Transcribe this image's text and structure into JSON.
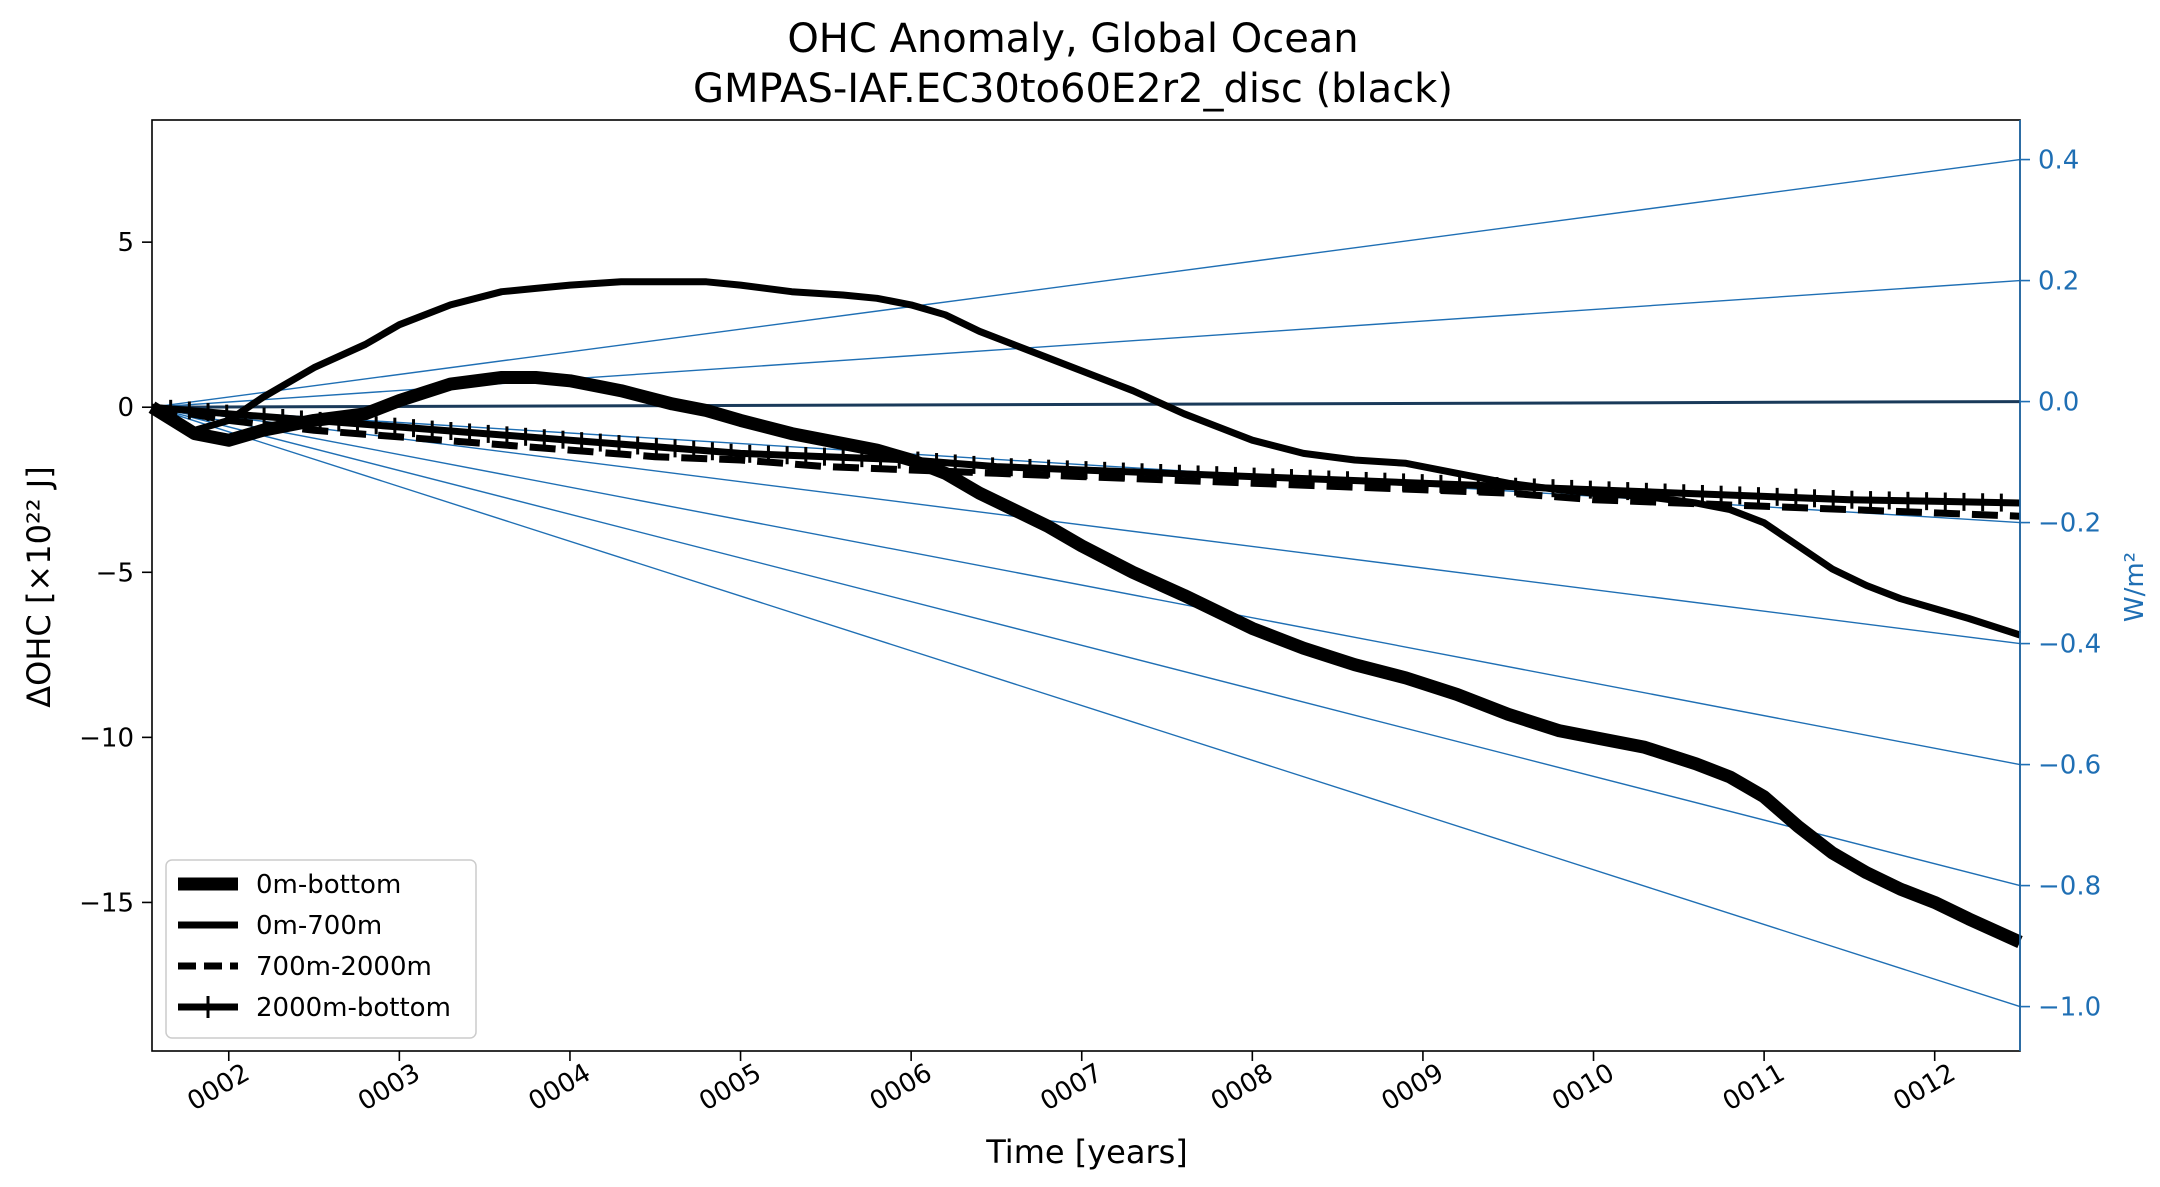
{
  "chart_data": {
    "type": "line",
    "title": "OHC Anomaly, Global Ocean",
    "subtitle": "GMPAS-IAF.EC30to60E2r2_disc (black)",
    "xlabel": "Time [years]",
    "ylabel": "ΔOHC [×10²² J]",
    "ylabel_right": "W/m²",
    "xlim": [
      1.55,
      12.5
    ],
    "ylim": [
      -19.5,
      8.7
    ],
    "ylim_right": [
      -1.0734,
      0.4654
    ],
    "x_ticks": [
      2,
      3,
      4,
      5,
      6,
      7,
      8,
      9,
      10,
      11,
      12
    ],
    "x_tick_labels": [
      "0002",
      "0003",
      "0004",
      "0005",
      "0006",
      "0007",
      "0008",
      "0009",
      "0010",
      "0011",
      "0012"
    ],
    "y_ticks": [
      5,
      0,
      -5,
      -10,
      -15
    ],
    "y_tick_labels": [
      "5",
      "0",
      "−5",
      "−10",
      "−15"
    ],
    "y_right_ticks": [
      0.4,
      0.2,
      0.0,
      -0.2,
      -0.4,
      -0.6,
      -0.8,
      -1.0
    ],
    "y_right_tick_labels": [
      "0.4",
      "0.2",
      "0.0",
      "−0.2",
      "−0.4",
      "−0.6",
      "−0.8",
      "−1.0"
    ],
    "reference_lines_wm2": [
      0.4,
      0.2,
      0.0,
      -0.2,
      -0.4,
      -0.6,
      -0.8,
      -1.0
    ],
    "reference_color": "#1f6fb4",
    "legend_location": "lower-left",
    "grid": false,
    "series": [
      {
        "name": "0m-bottom",
        "style": "solid-thick",
        "color": "#000000",
        "x": [
          1.55,
          1.8,
          2.0,
          2.2,
          2.5,
          2.8,
          3.0,
          3.3,
          3.6,
          3.8,
          4.0,
          4.3,
          4.6,
          4.8,
          5.0,
          5.3,
          5.6,
          5.8,
          6.0,
          6.2,
          6.4,
          6.6,
          6.8,
          7.0,
          7.3,
          7.6,
          7.8,
          8.0,
          8.3,
          8.6,
          8.9,
          9.2,
          9.5,
          9.8,
          10.0,
          10.3,
          10.6,
          10.8,
          11.0,
          11.2,
          11.4,
          11.6,
          11.8,
          12.0,
          12.2,
          12.5
        ],
        "y": [
          0.0,
          -0.8,
          -1.0,
          -0.7,
          -0.4,
          -0.2,
          0.2,
          0.7,
          0.9,
          0.9,
          0.8,
          0.5,
          0.1,
          -0.1,
          -0.4,
          -0.8,
          -1.1,
          -1.3,
          -1.6,
          -2.0,
          -2.6,
          -3.1,
          -3.6,
          -4.2,
          -5.0,
          -5.7,
          -6.2,
          -6.7,
          -7.3,
          -7.8,
          -8.2,
          -8.7,
          -9.3,
          -9.8,
          -10.0,
          -10.3,
          -10.8,
          -11.2,
          -11.8,
          -12.7,
          -13.5,
          -14.1,
          -14.6,
          -15.0,
          -15.5,
          -16.2
        ]
      },
      {
        "name": "0m-700m",
        "style": "solid",
        "color": "#000000",
        "x": [
          1.55,
          1.8,
          2.0,
          2.2,
          2.5,
          2.8,
          3.0,
          3.3,
          3.6,
          3.8,
          4.0,
          4.3,
          4.6,
          4.8,
          5.0,
          5.3,
          5.6,
          5.8,
          6.0,
          6.2,
          6.4,
          6.6,
          6.8,
          7.0,
          7.3,
          7.6,
          7.8,
          8.0,
          8.3,
          8.6,
          8.9,
          9.2,
          9.5,
          9.8,
          10.0,
          10.3,
          10.6,
          10.8,
          11.0,
          11.2,
          11.4,
          11.6,
          11.8,
          12.0,
          12.2,
          12.5
        ],
        "y": [
          0.0,
          -0.7,
          -0.4,
          0.3,
          1.2,
          1.9,
          2.5,
          3.1,
          3.5,
          3.6,
          3.7,
          3.8,
          3.8,
          3.8,
          3.7,
          3.5,
          3.4,
          3.3,
          3.1,
          2.8,
          2.3,
          1.9,
          1.5,
          1.1,
          0.5,
          -0.2,
          -0.6,
          -1.0,
          -1.4,
          -1.6,
          -1.7,
          -2.0,
          -2.3,
          -2.5,
          -2.6,
          -2.7,
          -2.9,
          -3.1,
          -3.5,
          -4.2,
          -4.9,
          -5.4,
          -5.8,
          -6.1,
          -6.4,
          -6.9
        ]
      },
      {
        "name": "700m-2000m",
        "style": "dashed",
        "color": "#000000",
        "x": [
          1.55,
          2.0,
          2.5,
          3.0,
          3.5,
          4.0,
          4.5,
          5.0,
          5.5,
          6.0,
          6.5,
          7.0,
          7.5,
          8.0,
          8.5,
          9.0,
          9.5,
          10.0,
          10.5,
          11.0,
          11.5,
          12.0,
          12.5
        ],
        "y": [
          0.0,
          -0.4,
          -0.7,
          -0.9,
          -1.1,
          -1.3,
          -1.5,
          -1.6,
          -1.8,
          -1.9,
          -2.0,
          -2.1,
          -2.2,
          -2.3,
          -2.4,
          -2.5,
          -2.6,
          -2.8,
          -2.9,
          -3.0,
          -3.1,
          -3.2,
          -3.3
        ]
      },
      {
        "name": "2000m-bottom",
        "style": "solid-plus",
        "color": "#000000",
        "x": [
          1.55,
          2.0,
          2.5,
          3.0,
          3.5,
          4.0,
          4.5,
          5.0,
          5.5,
          6.0,
          6.5,
          7.0,
          7.5,
          8.0,
          8.5,
          9.0,
          9.5,
          10.0,
          10.5,
          11.0,
          11.5,
          12.0,
          12.5
        ],
        "y": [
          0.0,
          -0.2,
          -0.4,
          -0.6,
          -0.8,
          -1.0,
          -1.2,
          -1.4,
          -1.5,
          -1.6,
          -1.8,
          -1.9,
          -2.0,
          -2.1,
          -2.2,
          -2.3,
          -2.4,
          -2.5,
          -2.6,
          -2.7,
          -2.8,
          -2.85,
          -2.9
        ]
      }
    ]
  }
}
